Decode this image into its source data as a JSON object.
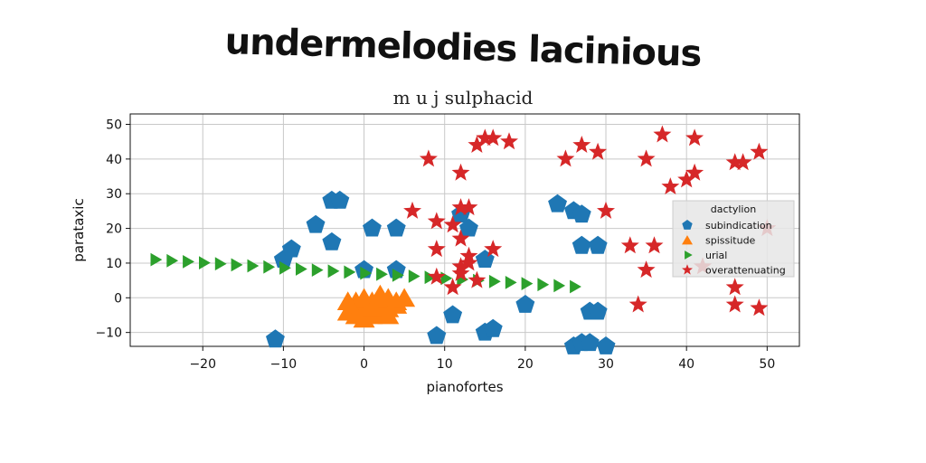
{
  "chart_data": {
    "type": "scatter",
    "title": "undermelodies lacinious",
    "subtitle": "m u j sulphacid",
    "xlabel": "pianofortes",
    "ylabel": "parataxic",
    "xlim": [
      -29,
      54
    ],
    "ylim": [
      -14,
      53
    ],
    "xticks": [
      -20,
      -10,
      0,
      10,
      20,
      30,
      40,
      50
    ],
    "yticks": [
      -10,
      0,
      10,
      20,
      30,
      40,
      50
    ],
    "grid": true,
    "legend": {
      "title": "dactylion",
      "placement": "right"
    },
    "colors": {
      "subindication": "#1f77b4",
      "spissitude": "#ff7f0e",
      "urial": "#2ca02c",
      "overattenuating": "#d62728"
    },
    "series": [
      {
        "name": "subindication",
        "marker": "pentagon",
        "points": [
          [
            -11,
            -12
          ],
          [
            -10,
            11
          ],
          [
            -9,
            14
          ],
          [
            -6,
            21
          ],
          [
            -4,
            28
          ],
          [
            -3,
            28
          ],
          [
            -4,
            16
          ],
          [
            1,
            20
          ],
          [
            4,
            20
          ],
          [
            0,
            8
          ],
          [
            4,
            8
          ],
          [
            9,
            -11
          ],
          [
            11,
            -5
          ],
          [
            12,
            24
          ],
          [
            13,
            20
          ],
          [
            15,
            -10
          ],
          [
            16,
            -9
          ],
          [
            15,
            11
          ],
          [
            20,
            -2
          ],
          [
            24,
            27
          ],
          [
            26,
            25
          ],
          [
            27,
            24
          ],
          [
            26,
            -14
          ],
          [
            27,
            -13
          ],
          [
            28,
            -13
          ],
          [
            28,
            -4
          ],
          [
            29,
            -4
          ],
          [
            27,
            15
          ],
          [
            29,
            15
          ],
          [
            30,
            -14
          ]
        ]
      },
      {
        "name": "spissitude",
        "marker": "triangle-up",
        "points": [
          [
            -2,
            -4
          ],
          [
            -1,
            -2
          ],
          [
            0,
            -3
          ],
          [
            1,
            -5
          ],
          [
            2,
            -4
          ],
          [
            3,
            -3
          ],
          [
            4,
            -2
          ],
          [
            -1,
            -1
          ],
          [
            0,
            0
          ],
          [
            1,
            -1
          ],
          [
            2,
            -2
          ],
          [
            3,
            0
          ],
          [
            4,
            -1
          ],
          [
            0,
            -6
          ],
          [
            1,
            -3
          ],
          [
            -2,
            -1
          ],
          [
            2,
            1
          ],
          [
            5,
            0
          ],
          [
            -1,
            -5
          ],
          [
            3,
            -5
          ]
        ]
      },
      {
        "name": "urial",
        "marker": "triangle-right",
        "points": [
          [
            -26,
            11
          ],
          [
            -24,
            10.7
          ],
          [
            -22,
            10.4
          ],
          [
            -20,
            10.1
          ],
          [
            -18,
            9.8
          ],
          [
            -16,
            9.5
          ],
          [
            -14,
            9.2
          ],
          [
            -12,
            8.9
          ],
          [
            -10,
            8.6
          ],
          [
            -8,
            8.3
          ],
          [
            -6,
            8.0
          ],
          [
            -4,
            7.7
          ],
          [
            -2,
            7.4
          ],
          [
            0,
            7.1
          ],
          [
            2,
            6.8
          ],
          [
            4,
            6.5
          ],
          [
            6,
            6.2
          ],
          [
            8,
            5.9
          ],
          [
            10,
            5.6
          ],
          [
            12,
            5.3
          ],
          [
            14,
            5.0
          ],
          [
            16,
            4.7
          ],
          [
            18,
            4.4
          ],
          [
            20,
            4.1
          ],
          [
            22,
            3.8
          ],
          [
            24,
            3.5
          ],
          [
            26,
            3.2
          ]
        ]
      },
      {
        "name": "overattenuating",
        "marker": "star",
        "points": [
          [
            8,
            40
          ],
          [
            12,
            36
          ],
          [
            14,
            44
          ],
          [
            15,
            46
          ],
          [
            16,
            46
          ],
          [
            18,
            45
          ],
          [
            25,
            40
          ],
          [
            27,
            44
          ],
          [
            29,
            42
          ],
          [
            35,
            40
          ],
          [
            37,
            47
          ],
          [
            38,
            32
          ],
          [
            40,
            34
          ],
          [
            41,
            36
          ],
          [
            41,
            46
          ],
          [
            46,
            39
          ],
          [
            47,
            39
          ],
          [
            49,
            42
          ],
          [
            6,
            25
          ],
          [
            9,
            22
          ],
          [
            11,
            21
          ],
          [
            12,
            26
          ],
          [
            13,
            26
          ],
          [
            12,
            17
          ],
          [
            16,
            14
          ],
          [
            9,
            14
          ],
          [
            13,
            12
          ],
          [
            13,
            10
          ],
          [
            12,
            9
          ],
          [
            9,
            6
          ],
          [
            11,
            3
          ],
          [
            12,
            7
          ],
          [
            14,
            5
          ],
          [
            30,
            25
          ],
          [
            33,
            15
          ],
          [
            35,
            8
          ],
          [
            36,
            15
          ],
          [
            34,
            -2
          ],
          [
            42,
            9
          ],
          [
            46,
            3
          ],
          [
            46,
            -2
          ],
          [
            49,
            -3
          ],
          [
            50,
            20
          ]
        ]
      }
    ]
  }
}
